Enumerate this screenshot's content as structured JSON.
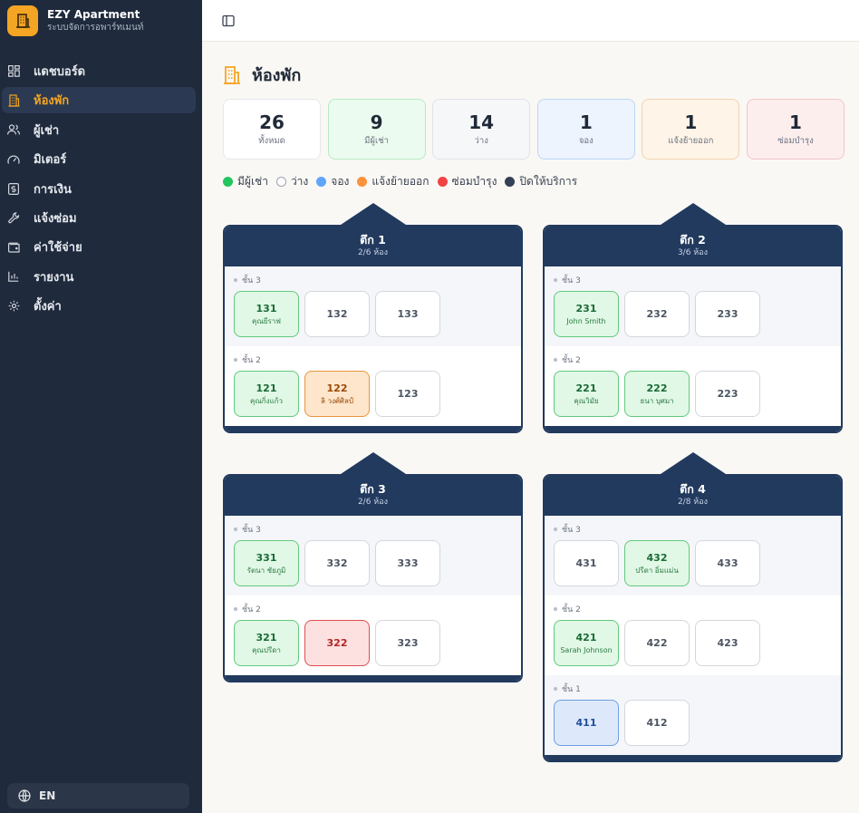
{
  "brand": {
    "title": "EZY Apartment",
    "subtitle": "ระบบจัดการอพาร์ทเมนท์"
  },
  "sidebar": {
    "items": [
      {
        "label": "แดชบอร์ด",
        "icon": "dashboard-icon"
      },
      {
        "label": "ห้องพัก",
        "icon": "building-icon",
        "active": true
      },
      {
        "label": "ผู้เช่า",
        "icon": "users-icon"
      },
      {
        "label": "มิเตอร์",
        "icon": "gauge-icon"
      },
      {
        "label": "การเงิน",
        "icon": "dollar-icon"
      },
      {
        "label": "แจ้งซ่อม",
        "icon": "wrench-icon"
      },
      {
        "label": "ค่าใช้จ่าย",
        "icon": "wallet-icon"
      },
      {
        "label": "รายงาน",
        "icon": "chart-icon"
      },
      {
        "label": "ตั้งค่า",
        "icon": "gear-icon"
      }
    ],
    "language": "EN"
  },
  "page": {
    "title": "ห้องพัก"
  },
  "stats": [
    {
      "value": "26",
      "label": "ทั้งหมด"
    },
    {
      "value": "9",
      "label": "มีผู้เช่า"
    },
    {
      "value": "14",
      "label": "ว่าง"
    },
    {
      "value": "1",
      "label": "จอง"
    },
    {
      "value": "1",
      "label": "แจ้งย้ายออก"
    },
    {
      "value": "1",
      "label": "ซ่อมบำรุง"
    }
  ],
  "legend": [
    {
      "label": "มีผู้เช่า",
      "color": "#22c55e"
    },
    {
      "label": "ว่าง",
      "color": "#ffffff"
    },
    {
      "label": "จอง",
      "color": "#60a5fa"
    },
    {
      "label": "แจ้งย้ายออก",
      "color": "#fb923c"
    },
    {
      "label": "ซ่อมบำรุง",
      "color": "#ef4444"
    },
    {
      "label": "ปิดให้บริการ",
      "color": "#334155"
    }
  ],
  "buildings": [
    {
      "name": "ตึก 1",
      "count": "2/6 ห้อง",
      "floors": [
        {
          "label": "ชั้น 3",
          "rooms": [
            {
              "number": "131",
              "tenant": "คุณยีราฟ",
              "status": "occupied"
            },
            {
              "number": "132",
              "tenant": "",
              "status": "vacant"
            },
            {
              "number": "133",
              "tenant": "",
              "status": "vacant"
            }
          ]
        },
        {
          "label": "ชั้น 2",
          "rooms": [
            {
              "number": "121",
              "tenant": "คุณกิ่งแก้ว",
              "status": "occupied"
            },
            {
              "number": "122",
              "tenant": "ลิ วงศ์ศิลป์",
              "status": "moving"
            },
            {
              "number": "123",
              "tenant": "",
              "status": "vacant"
            }
          ]
        }
      ]
    },
    {
      "name": "ตึก 2",
      "count": "3/6 ห้อง",
      "floors": [
        {
          "label": "ชั้น 3",
          "rooms": [
            {
              "number": "231",
              "tenant": "John Smith",
              "status": "occupied"
            },
            {
              "number": "232",
              "tenant": "",
              "status": "vacant"
            },
            {
              "number": "233",
              "tenant": "",
              "status": "vacant"
            }
          ]
        },
        {
          "label": "ชั้น 2",
          "rooms": [
            {
              "number": "221",
              "tenant": "คุณวิมัย",
              "status": "occupied"
            },
            {
              "number": "222",
              "tenant": "ธนา บุศมา",
              "status": "occupied"
            },
            {
              "number": "223",
              "tenant": "",
              "status": "vacant"
            }
          ]
        }
      ]
    },
    {
      "name": "ตึก 3",
      "count": "2/6 ห้อง",
      "floors": [
        {
          "label": "ชั้น 3",
          "rooms": [
            {
              "number": "331",
              "tenant": "รัตนา ชัยภูมิ",
              "status": "occupied"
            },
            {
              "number": "332",
              "tenant": "",
              "status": "vacant"
            },
            {
              "number": "333",
              "tenant": "",
              "status": "vacant"
            }
          ]
        },
        {
          "label": "ชั้น 2",
          "rooms": [
            {
              "number": "321",
              "tenant": "คุณปรีดา",
              "status": "occupied"
            },
            {
              "number": "322",
              "tenant": "",
              "status": "maintenance"
            },
            {
              "number": "323",
              "tenant": "",
              "status": "vacant"
            }
          ]
        }
      ]
    },
    {
      "name": "ตึก 4",
      "count": "2/8 ห้อง",
      "floors": [
        {
          "label": "ชั้น 3",
          "rooms": [
            {
              "number": "431",
              "tenant": "",
              "status": "vacant"
            },
            {
              "number": "432",
              "tenant": "ปรีดา อิ่มแม่น",
              "status": "occupied"
            },
            {
              "number": "433",
              "tenant": "",
              "status": "vacant"
            }
          ]
        },
        {
          "label": "ชั้น 2",
          "rooms": [
            {
              "number": "421",
              "tenant": "Sarah Johnson",
              "status": "occupied"
            },
            {
              "number": "422",
              "tenant": "",
              "status": "vacant"
            },
            {
              "number": "423",
              "tenant": "",
              "status": "vacant"
            }
          ]
        },
        {
          "label": "ชั้น 1",
          "rooms": [
            {
              "number": "411",
              "tenant": "",
              "status": "reserved"
            },
            {
              "number": "412",
              "tenant": "",
              "status": "vacant"
            }
          ]
        }
      ]
    }
  ]
}
